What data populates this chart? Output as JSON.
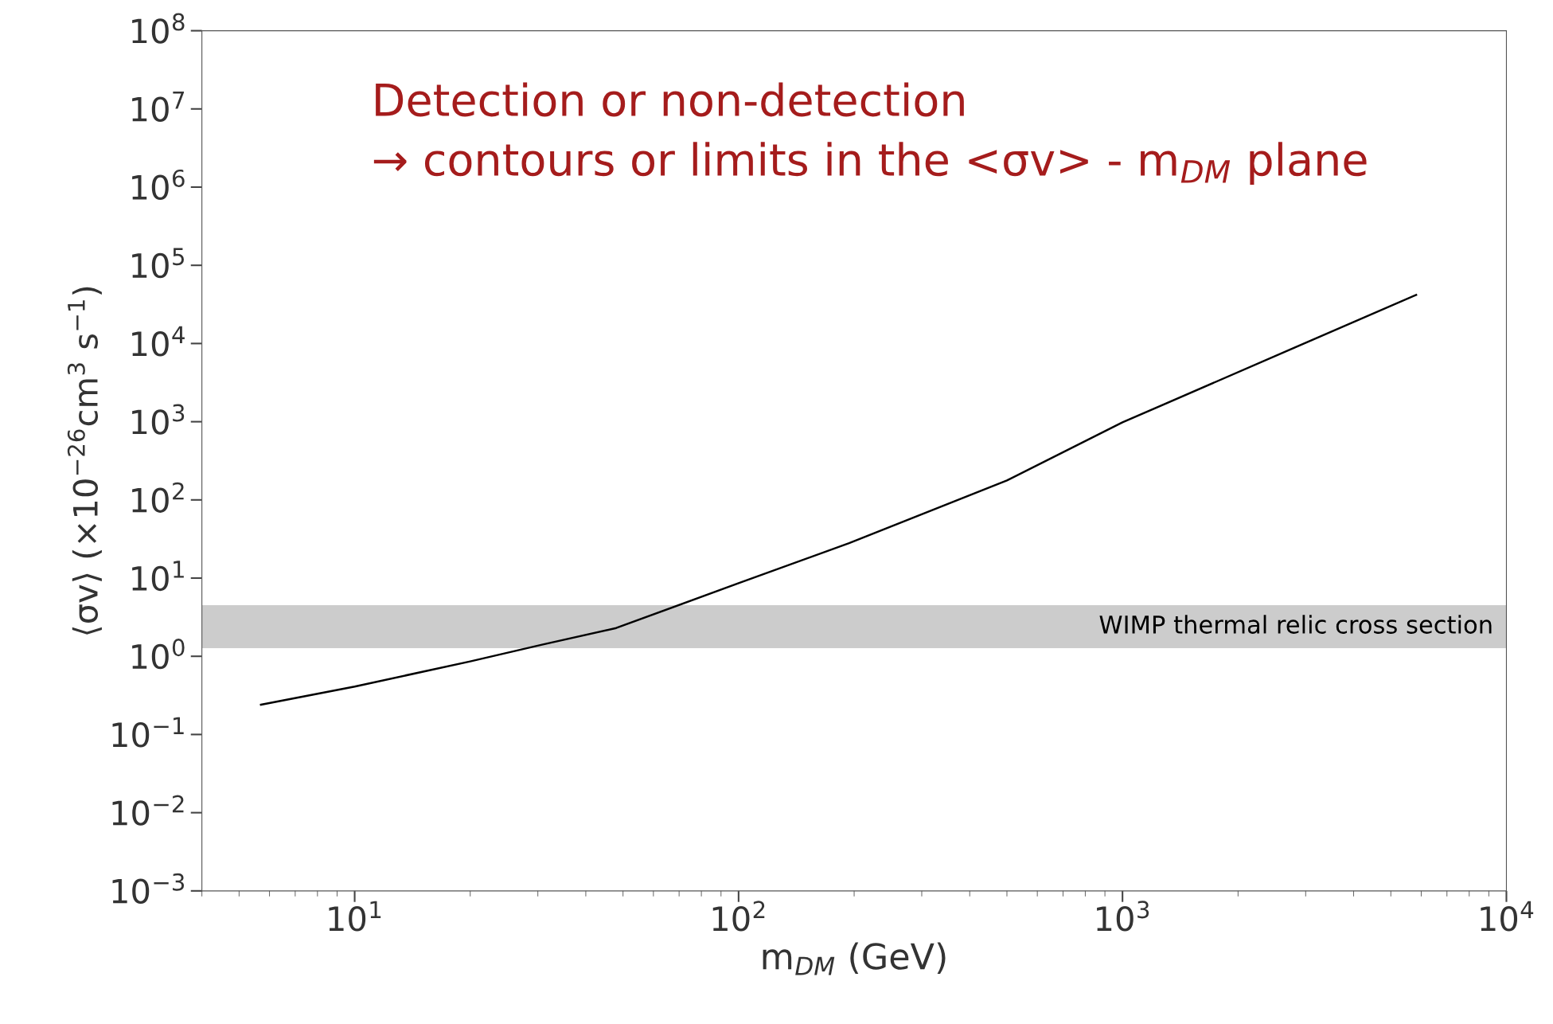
{
  "chart_data": {
    "type": "line",
    "xlabel": "m$_{DM}$ (GeV)",
    "ylabel": "⟨σv⟩ (×10$^{−26}$cm$^{3}$ s$^{−1}$)",
    "log": "xy",
    "grid": false,
    "marker": "none",
    "line_style": "solid",
    "xlim": [
      4,
      10000
    ],
    "ylim": [
      0.001,
      100000000
    ],
    "xticks": [
      {
        "value": 10,
        "label": "10$^{1}$"
      },
      {
        "value": 100,
        "label": "10$^{2}$"
      },
      {
        "value": 1000,
        "label": "10$^{3}$"
      },
      {
        "value": 10000,
        "label": "10$^{4}$"
      }
    ],
    "yticks": [
      {
        "value": 0.001,
        "label": "10$^{−3}$"
      },
      {
        "value": 0.01,
        "label": "10$^{−2}$"
      },
      {
        "value": 0.1,
        "label": "10$^{−1}$"
      },
      {
        "value": 1,
        "label": "10$^{0}$"
      },
      {
        "value": 10,
        "label": "10$^{1}$"
      },
      {
        "value": 100,
        "label": "10$^{2}$"
      },
      {
        "value": 1000,
        "label": "10$^{3}$"
      },
      {
        "value": 10000,
        "label": "10$^{4}$"
      },
      {
        "value": 100000,
        "label": "10$^{5}$"
      },
      {
        "value": 1000000,
        "label": "10$^{6}$"
      },
      {
        "value": 10000000,
        "label": "10$^{7}$"
      },
      {
        "value": 100000000,
        "label": "10$^{8}$"
      }
    ],
    "x": [
      5.7,
      10,
      20,
      30.6,
      48,
      100,
      194,
      500,
      1000,
      2820,
      5820
    ],
    "series": [
      {
        "color": "#000000",
        "values": [
          0.24,
          0.41,
          0.86,
          1.4,
          2.3,
          8.6,
          28,
          177,
          980,
          8950,
          41800
        ]
      }
    ],
    "bands": [
      {
        "axis": "y",
        "from": 1.27,
        "to": 4.5,
        "label": "WIMP thermal relic cross section",
        "color": "#cccccc"
      }
    ],
    "annotations": [
      "Detection or non-detection\n→ contours or limits in the <σv> - m$_{DM}$ plane"
    ]
  }
}
